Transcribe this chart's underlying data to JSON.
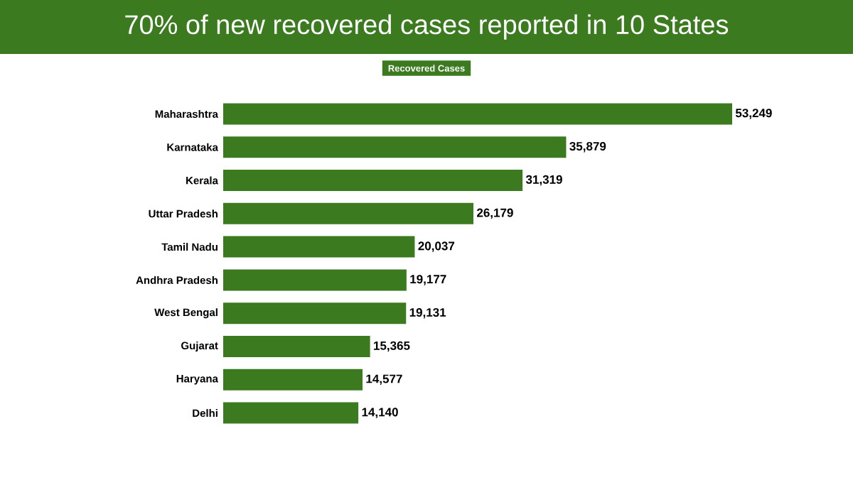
{
  "chart_data": {
    "type": "bar",
    "orientation": "horizontal",
    "title": "70% of new recovered cases reported in 10 States",
    "subtitle": "Recovered Cases",
    "categories": [
      "Maharashtra",
      "Karnataka",
      "Kerala",
      "Uttar Pradesh",
      "Tamil Nadu",
      "Andhra Pradesh",
      "West Bengal",
      "Gujarat",
      "Haryana",
      "Delhi"
    ],
    "values": [
      53249,
      35879,
      31319,
      26179,
      20037,
      19177,
      19131,
      15365,
      14577,
      14140
    ],
    "value_labels": [
      "53,249",
      "35,879",
      "31,319",
      "26,179",
      "20,037",
      "19,177",
      "19,131",
      "15,365",
      "14,577",
      "14,140"
    ],
    "color": "#3b7a1f"
  }
}
